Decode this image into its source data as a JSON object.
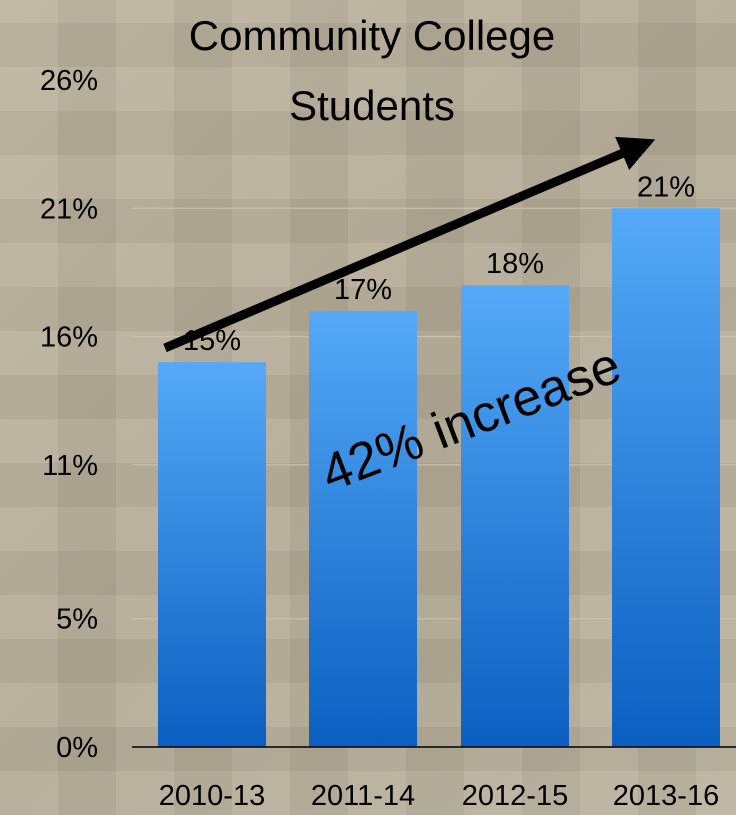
{
  "chart_data": {
    "type": "bar",
    "title_lines": [
      "Community College",
      "Students"
    ],
    "categories": [
      "2010-13",
      "2011-14",
      "2012-15",
      "2013-16"
    ],
    "values": [
      15,
      17,
      18,
      21
    ],
    "value_labels": [
      "15%",
      "17%",
      "18%",
      "21%"
    ],
    "y_ticks": [
      0,
      5,
      11,
      16,
      21,
      26
    ],
    "y_tick_labels": [
      "0%",
      "5%",
      "11%",
      "16%",
      "21%",
      "26%"
    ],
    "ylim": [
      0,
      26
    ],
    "grid": true,
    "annotation": "42% increase",
    "bar_color_top": "#55a9f7",
    "bar_color_bottom": "#0b5fc1",
    "gridline_color": "#c9c1ae",
    "arrow_color": "#000000"
  }
}
